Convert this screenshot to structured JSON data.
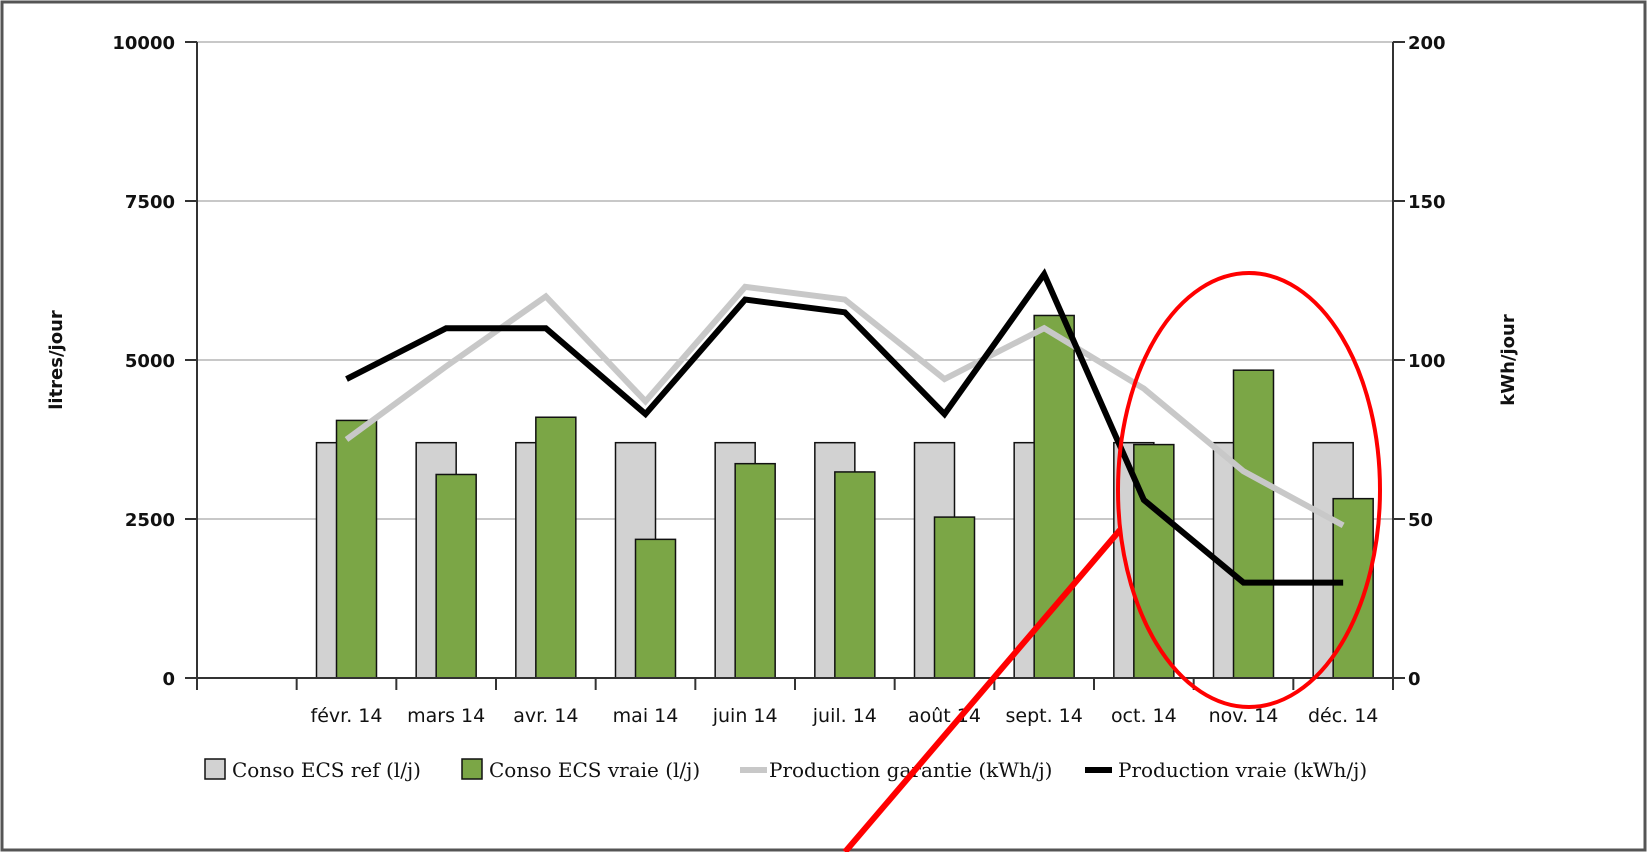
{
  "chart_data": {
    "type": "bar",
    "title": "",
    "categories": [
      "",
      "févr. 14",
      "mars 14",
      "avr. 14",
      "mai 14",
      "juin 14",
      "juil. 14",
      "août 14",
      "sept. 14",
      "oct. 14",
      "nov. 14",
      "déc. 14"
    ],
    "y_left": {
      "label": "litres/jour",
      "range": [
        0,
        10000
      ],
      "ticks": [
        0,
        2500,
        5000,
        7500,
        10000
      ]
    },
    "y_right": {
      "label": "kWh/jour",
      "range": [
        0,
        200
      ],
      "ticks": [
        0,
        50,
        100,
        150,
        200
      ]
    },
    "grid": true,
    "legend_position": "bottom",
    "series": [
      {
        "name": "Conso ECS ref (l/j)",
        "type": "bar",
        "axis": "left",
        "color": "#d2d2d2",
        "values": [
          null,
          3700,
          3700,
          3700,
          3700,
          3700,
          3700,
          3700,
          3700,
          3700,
          3700,
          3700
        ]
      },
      {
        "name": "Conso ECS vraie (l/j)",
        "type": "bar",
        "axis": "left",
        "color": "#7ba646",
        "values": [
          null,
          4050,
          3200,
          4100,
          2180,
          3370,
          3240,
          2530,
          5700,
          3670,
          4840,
          2820
        ]
      },
      {
        "name": "Production garantie (kWh/j)",
        "type": "line",
        "axis": "right",
        "color": "#c8c8c8",
        "values": [
          null,
          75,
          98,
          120,
          87,
          123,
          119,
          94,
          110,
          91,
          65,
          48
        ]
      },
      {
        "name": "Production vraie (kWh/j)",
        "type": "line",
        "axis": "right",
        "color": "#000000",
        "values": [
          null,
          94,
          110,
          110,
          83,
          119,
          115,
          83,
          127,
          56,
          30,
          30
        ]
      }
    ]
  }
}
